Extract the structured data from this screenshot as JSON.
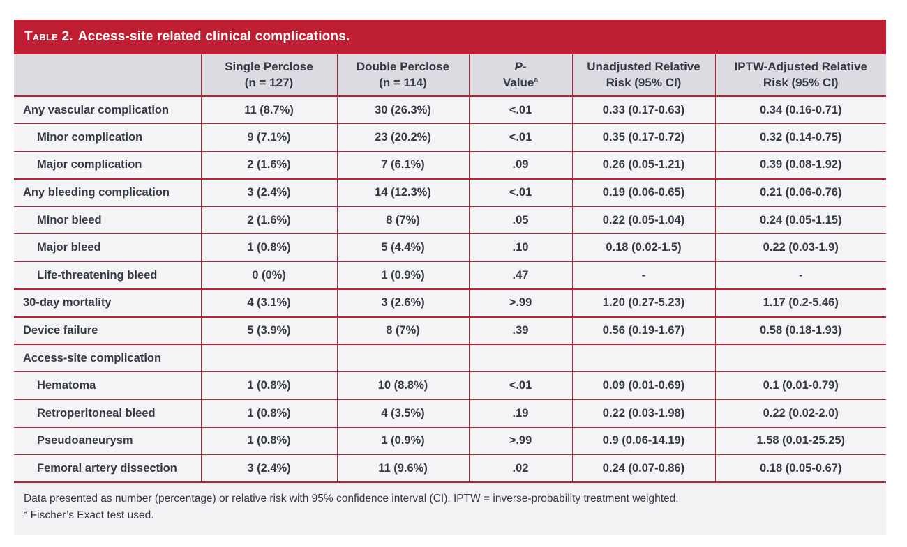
{
  "colors": {
    "accent_red": "#c01e32",
    "header_row_bg": "#dcdbe2",
    "row_bg": "#f4f3f6",
    "footer_bg": "#f2f1f4",
    "text_dark": "#333a45",
    "title_text": "#ffffff",
    "page_bg": "#ffffff"
  },
  "table": {
    "title_label": "Table 2.",
    "title_text": "Access-site related clinical complications.",
    "columns": [
      {
        "line1": "",
        "line2": ""
      },
      {
        "line1": "Single Perclose",
        "line2": "(n = 127)"
      },
      {
        "line1": "Double Perclose",
        "line2": "(n = 114)"
      },
      {
        "line1": "P-",
        "line2": "Value",
        "sup": "a"
      },
      {
        "line1": "Unadjusted Relative",
        "line2": "Risk (95% CI)"
      },
      {
        "line1": "IPTW-Adjusted Relative",
        "line2": "Risk (95% CI)"
      }
    ],
    "rows": [
      {
        "label": "Any vascular complication",
        "indent": 0,
        "single": "11 (8.7%)",
        "double": "30 (26.3%)",
        "p": "<.01",
        "rr": "0.33 (0.17-0.63)",
        "iptw_rr": "0.34 (0.16-0.71)"
      },
      {
        "label": "Minor complication",
        "indent": 1,
        "single": "9 (7.1%)",
        "double": "23 (20.2%)",
        "p": "<.01",
        "rr": "0.35 (0.17-0.72)",
        "iptw_rr": "0.32 (0.14-0.75)"
      },
      {
        "label": "Major complication",
        "indent": 1,
        "single": "2 (1.6%)",
        "double": "7 (6.1%)",
        "p": ".09",
        "rr": "0.26 (0.05-1.21)",
        "iptw_rr": "0.39 (0.08-1.92)"
      },
      {
        "label": "Any bleeding complication",
        "indent": 0,
        "single": "3 (2.4%)",
        "double": "14 (12.3%)",
        "p": "<.01",
        "rr": "0.19 (0.06-0.65)",
        "iptw_rr": "0.21 (0.06-0.76)"
      },
      {
        "label": "Minor bleed",
        "indent": 1,
        "single": "2 (1.6%)",
        "double": "8 (7%)",
        "p": ".05",
        "rr": "0.22 (0.05-1.04)",
        "iptw_rr": "0.24 (0.05-1.15)"
      },
      {
        "label": "Major bleed",
        "indent": 1,
        "single": "1 (0.8%)",
        "double": "5 (4.4%)",
        "p": ".10",
        "rr": "0.18 (0.02-1.5)",
        "iptw_rr": "0.22 (0.03-1.9)"
      },
      {
        "label": "Life-threatening bleed",
        "indent": 1,
        "single": "0 (0%)",
        "double": "1 (0.9%)",
        "p": ".47",
        "rr": "-",
        "iptw_rr": "-"
      },
      {
        "label": "30-day mortality",
        "indent": 0,
        "single": "4 (3.1%)",
        "double": "3 (2.6%)",
        "p": ">.99",
        "rr": "1.20 (0.27-5.23)",
        "iptw_rr": "1.17 (0.2-5.46)"
      },
      {
        "label": "Device failure",
        "indent": 0,
        "single": "5 (3.9%)",
        "double": "8 (7%)",
        "p": ".39",
        "rr": "0.56 (0.19-1.67)",
        "iptw_rr": "0.58 (0.18-1.93)"
      },
      {
        "label": "Access-site complication",
        "indent": 0,
        "single": "",
        "double": "",
        "p": "",
        "rr": "",
        "iptw_rr": ""
      },
      {
        "label": "Hematoma",
        "indent": 1,
        "single": "1 (0.8%)",
        "double": "10 (8.8%)",
        "p": "<.01",
        "rr": "0.09 (0.01-0.69)",
        "iptw_rr": "0.1 (0.01-0.79)"
      },
      {
        "label": "Retroperitoneal bleed",
        "indent": 1,
        "single": "1 (0.8%)",
        "double": "4 (3.5%)",
        "p": ".19",
        "rr": "0.22 (0.03-1.98)",
        "iptw_rr": "0.22 (0.02-2.0)"
      },
      {
        "label": "Pseudoaneurysm",
        "indent": 1,
        "single": "1 (0.8%)",
        "double": "1 (0.9%)",
        "p": ">.99",
        "rr": "0.9 (0.06-14.19)",
        "iptw_rr": "1.58 (0.01-25.25)"
      },
      {
        "label": "Femoral artery dissection",
        "indent": 1,
        "single": "3 (2.4%)",
        "double": "11 (9.6%)",
        "p": ".02",
        "rr": "0.24 (0.07-0.86)",
        "iptw_rr": "0.18 (0.05-0.67)"
      }
    ]
  },
  "footnotes": {
    "general": "Data presented as number (percentage) or relative risk with 95% confidence interval (CI). IPTW = inverse-probability treatment weighted.",
    "a_sup": "a",
    "a_text": "Fischer’s Exact test used."
  }
}
